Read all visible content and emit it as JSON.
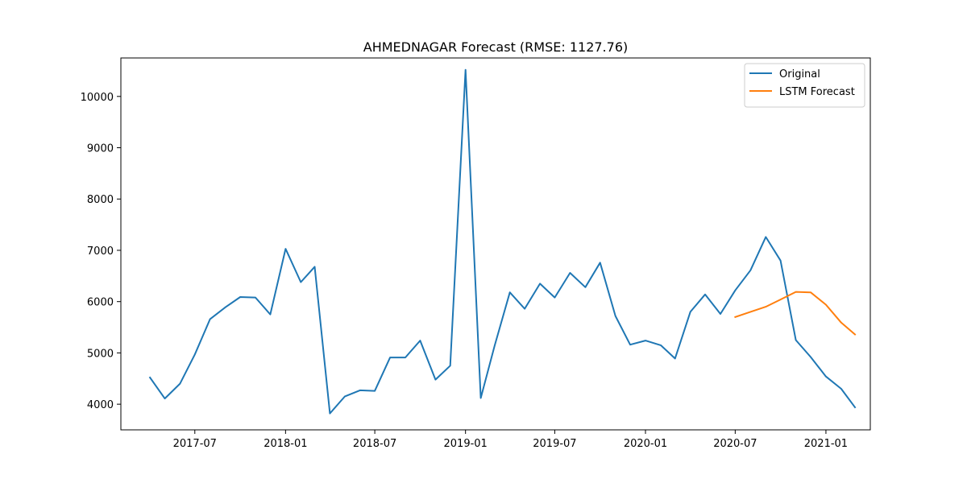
{
  "chart_data": {
    "type": "line",
    "title": "AHMEDNAGAR Forecast (RMSE: 1127.76)",
    "xlabel": "",
    "ylabel": "",
    "xlim": [
      "2017-02-01",
      "2021-04-01"
    ],
    "ylim": [
      3500,
      10750
    ],
    "x_ticks": [
      {
        "date": "2017-07-01",
        "label": "2017-07"
      },
      {
        "date": "2018-01-01",
        "label": "2018-01"
      },
      {
        "date": "2018-07-01",
        "label": "2018-07"
      },
      {
        "date": "2019-01-01",
        "label": "2019-01"
      },
      {
        "date": "2019-07-01",
        "label": "2019-07"
      },
      {
        "date": "2020-01-01",
        "label": "2020-01"
      },
      {
        "date": "2020-07-01",
        "label": "2020-07"
      },
      {
        "date": "2021-01-01",
        "label": "2021-01"
      }
    ],
    "y_ticks": [
      {
        "value": 4000,
        "label": "4000"
      },
      {
        "value": 5000,
        "label": "5000"
      },
      {
        "value": 6000,
        "label": "6000"
      },
      {
        "value": 7000,
        "label": "7000"
      },
      {
        "value": 8000,
        "label": "8000"
      },
      {
        "value": 9000,
        "label": "9000"
      },
      {
        "value": 10000,
        "label": "10000"
      }
    ],
    "grid": false,
    "legend_position": "top-right",
    "series": [
      {
        "name": "Original",
        "color": "#1f77b4",
        "x": [
          "2017-04-01",
          "2017-05-01",
          "2017-06-01",
          "2017-07-01",
          "2017-08-01",
          "2017-09-01",
          "2017-10-01",
          "2017-11-01",
          "2017-12-01",
          "2018-01-01",
          "2018-02-01",
          "2018-03-01",
          "2018-04-01",
          "2018-05-01",
          "2018-06-01",
          "2018-07-01",
          "2018-08-01",
          "2018-09-01",
          "2018-10-01",
          "2018-11-01",
          "2018-12-01",
          "2019-01-01",
          "2019-02-01",
          "2019-03-01",
          "2019-04-01",
          "2019-05-01",
          "2019-06-01",
          "2019-07-01",
          "2019-08-01",
          "2019-09-01",
          "2019-10-01",
          "2019-11-01",
          "2019-12-01",
          "2020-01-01",
          "2020-02-01",
          "2020-03-01",
          "2020-04-01",
          "2020-05-01",
          "2020-06-01",
          "2020-07-01",
          "2020-08-01",
          "2020-09-01",
          "2020-10-01",
          "2020-11-01",
          "2020-12-01",
          "2021-01-01",
          "2021-02-01",
          "2021-03-01"
        ],
        "y": [
          4520,
          4110,
          4400,
          4970,
          5660,
          5890,
          6090,
          6080,
          5750,
          7030,
          6380,
          6680,
          3820,
          4150,
          4270,
          4260,
          4910,
          4910,
          5240,
          4480,
          4750,
          10520,
          4120,
          5140,
          6180,
          5860,
          6350,
          6080,
          6560,
          6280,
          6760,
          5720,
          5160,
          5240,
          5150,
          4890,
          5800,
          6140,
          5760,
          6220,
          6610,
          7260,
          6800,
          5250,
          4920,
          4540,
          4300,
          3940
        ]
      },
      {
        "name": "LSTM Forecast",
        "color": "#ff7f0e",
        "x": [
          "2020-07-01",
          "2020-08-01",
          "2020-09-01",
          "2020-10-01",
          "2020-11-01",
          "2020-12-01",
          "2021-01-01",
          "2021-02-01",
          "2021-03-01"
        ],
        "y": [
          5700,
          5800,
          5900,
          6040,
          6190,
          6180,
          5940,
          5590,
          5360
        ]
      }
    ]
  }
}
